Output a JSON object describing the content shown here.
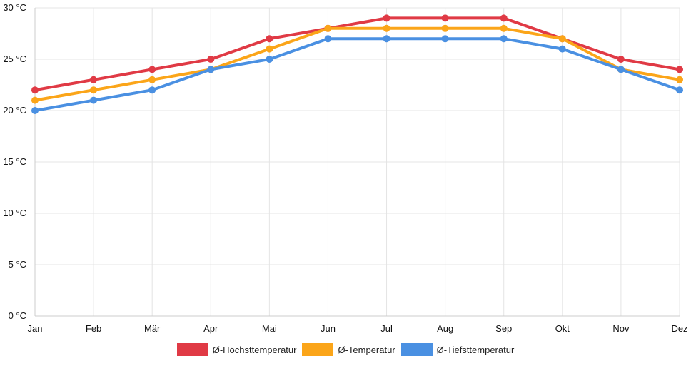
{
  "chart_data": {
    "type": "line",
    "categories": [
      "Jan",
      "Feb",
      "Mär",
      "Apr",
      "Mai",
      "Jun",
      "Jul",
      "Aug",
      "Sep",
      "Okt",
      "Nov",
      "Dez"
    ],
    "ylim": [
      0,
      30
    ],
    "yticks": [
      0,
      5,
      10,
      15,
      20,
      25,
      30
    ],
    "ytick_labels": [
      "0 °C",
      "5 °C",
      "10 °C",
      "15 °C",
      "20 °C",
      "25 °C",
      "30 °C"
    ],
    "grid": true,
    "legend_position": "bottom",
    "series": [
      {
        "name": "Ø-Höchsttemperatur",
        "color": "#e03a45",
        "values": [
          22,
          23,
          24,
          25,
          27,
          28,
          29,
          29,
          29,
          27,
          25,
          24
        ]
      },
      {
        "name": "Ø-Temperatur",
        "color": "#fba519",
        "values": [
          21,
          22,
          23,
          24,
          26,
          28,
          28,
          28,
          28,
          27,
          24,
          23
        ]
      },
      {
        "name": "Ø-Tiefsttemperatur",
        "color": "#4a90e2",
        "values": [
          20,
          21,
          22,
          24,
          25,
          27,
          27,
          27,
          27,
          26,
          24,
          22
        ]
      }
    ]
  }
}
